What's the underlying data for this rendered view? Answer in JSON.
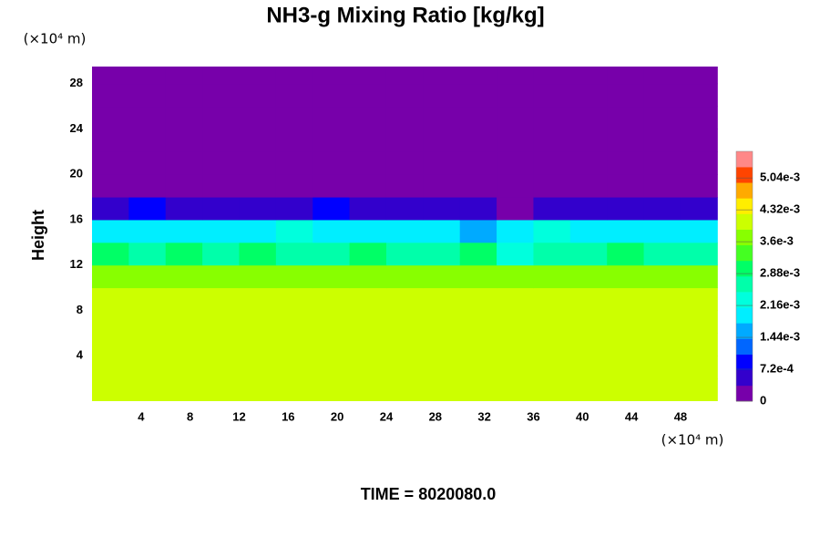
{
  "chart_data": {
    "type": "heatmap",
    "title": "NH3-g Mixing Ratio [kg/kg]",
    "ylabel": "Height",
    "x_unit": "(×10⁴ m)",
    "y_unit": "(×10⁴ m)",
    "footer": "TIME = 8020080.0",
    "x": [
      1.5,
      4.5,
      7.5,
      10.5,
      13.5,
      16.5,
      19.5,
      22.5,
      25.5,
      28.5,
      31.5,
      34.5,
      37.5,
      40.5,
      43.5,
      46.5,
      49.5
    ],
    "y": [
      1,
      3,
      5,
      7,
      9,
      11,
      13,
      15,
      17,
      19,
      21,
      23,
      25,
      27,
      29
    ],
    "z": [
      [
        0.004,
        0.004,
        0.004,
        0.004,
        0.004,
        0.004,
        0.004,
        0.004,
        0.004,
        0.004,
        0.004,
        0.004,
        0.004,
        0.004,
        0.004,
        0.004,
        0.004
      ],
      [
        0.004,
        0.004,
        0.004,
        0.004,
        0.004,
        0.004,
        0.004,
        0.004,
        0.004,
        0.004,
        0.004,
        0.004,
        0.004,
        0.004,
        0.004,
        0.004,
        0.004
      ],
      [
        0.004,
        0.004,
        0.004,
        0.004,
        0.004,
        0.004,
        0.004,
        0.004,
        0.004,
        0.004,
        0.004,
        0.004,
        0.004,
        0.004,
        0.004,
        0.004,
        0.004
      ],
      [
        0.004,
        0.004,
        0.004,
        0.004,
        0.004,
        0.004,
        0.004,
        0.004,
        0.004,
        0.004,
        0.004,
        0.004,
        0.004,
        0.004,
        0.004,
        0.004,
        0.004
      ],
      [
        0.004,
        0.004,
        0.004,
        0.004,
        0.004,
        0.004,
        0.004,
        0.004,
        0.004,
        0.004,
        0.004,
        0.004,
        0.004,
        0.004,
        0.004,
        0.004,
        0.004
      ],
      [
        0.0037,
        0.0036,
        0.0038,
        0.0037,
        0.0036,
        0.0037,
        0.0038,
        0.0036,
        0.0037,
        0.0037,
        0.0036,
        0.0037,
        0.0038,
        0.0037,
        0.0036,
        0.0037,
        0.0037
      ],
      [
        0.0029,
        0.0026,
        0.0029,
        0.0027,
        0.003,
        0.0028,
        0.0025,
        0.0029,
        0.0027,
        0.0026,
        0.0029,
        0.0024,
        0.0028,
        0.0026,
        0.0029,
        0.0027,
        0.0028
      ],
      [
        0.002,
        0.0019,
        0.0021,
        0.0018,
        0.002,
        0.0022,
        0.0019,
        0.0018,
        0.0021,
        0.0019,
        0.0017,
        0.002,
        0.0022,
        0.0019,
        0.0021,
        0.0018,
        0.002
      ],
      [
        0.0006,
        0.0008,
        0.0005,
        0.0007,
        0.0004,
        0.0006,
        0.0008,
        0.0005,
        0.0007,
        0.0004,
        0.0006,
        0.0003,
        0.0005,
        0.0004,
        0.0006,
        0.0005,
        0.0007
      ],
      [
        0,
        0,
        0,
        0,
        0,
        0,
        0,
        0,
        0,
        0,
        0,
        0,
        0,
        0,
        0,
        0,
        0
      ],
      [
        0,
        0,
        0,
        0,
        0,
        0,
        0,
        0,
        0,
        0,
        0,
        0,
        0,
        0,
        0,
        0,
        0
      ],
      [
        0,
        0,
        0,
        0,
        0,
        0,
        0,
        0,
        0,
        0,
        0,
        0,
        0,
        0,
        0,
        0,
        0
      ],
      [
        0,
        0,
        0,
        0,
        0,
        0,
        0,
        0,
        0,
        0,
        0,
        0,
        0,
        0,
        0,
        0,
        0
      ],
      [
        0,
        0,
        0,
        0,
        0,
        0,
        0,
        0,
        0,
        0,
        0,
        0,
        0,
        0,
        0,
        0,
        0
      ],
      [
        0,
        0,
        0,
        0,
        0,
        0,
        0,
        0,
        0,
        0,
        0,
        0,
        0,
        0,
        0,
        0,
        0
      ]
    ],
    "xlim": [
      0,
      51.2
    ],
    "ylim": [
      0,
      29.5
    ],
    "xticks": [
      4,
      8,
      12,
      16,
      20,
      24,
      28,
      32,
      36,
      40,
      44,
      48
    ],
    "yticks": [
      4,
      8,
      12,
      16,
      20,
      24,
      28
    ],
    "clim": [
      0,
      0.00564
    ],
    "cticks": [
      0,
      {
        "value": 0.00072,
        "label": "7.2e-4"
      },
      {
        "value": 0.00144,
        "label": "1.44e-3"
      },
      {
        "value": 0.00216,
        "label": "2.16e-3"
      },
      {
        "value": 0.00288,
        "label": "2.88e-3"
      },
      {
        "value": 0.0036,
        "label": "3.6e-3"
      },
      {
        "value": 0.00432,
        "label": "4.32e-3"
      },
      {
        "value": 0.00504,
        "label": "5.04e-3"
      }
    ],
    "colormap": [
      "#7700aa",
      "#3300cc",
      "#0000ff",
      "#0066ff",
      "#00aaff",
      "#00eeff",
      "#00ffdd",
      "#00ffaa",
      "#00ff66",
      "#44ff22",
      "#88ff00",
      "#ccff00",
      "#ffee00",
      "#ffaa00",
      "#ff4400",
      "#ff8888"
    ]
  }
}
